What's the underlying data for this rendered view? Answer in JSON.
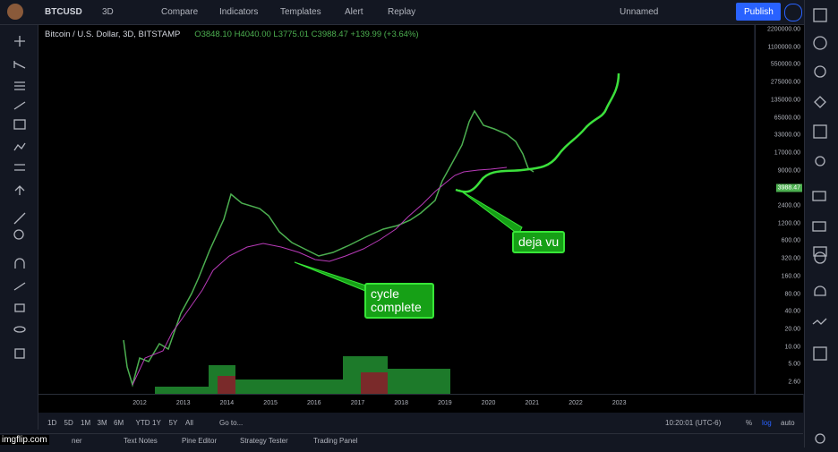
{
  "toolbar": {
    "symbol": "BTCUSD",
    "interval": "3D",
    "buttons": [
      "Compare",
      "Indicators",
      "Templates",
      "Alert",
      "Replay"
    ],
    "layout_name": "Unnamed",
    "publish": "Publish"
  },
  "legend": {
    "title": "Bitcoin / U.S. Dollar, 3D, BITSTAMP",
    "open": "O3848.10",
    "high": "H4040.00",
    "low": "L3775.01",
    "close": "C3988.47",
    "change": "+139.99 (+3.64%)"
  },
  "price_axis": {
    "labels": [
      "2200000.00",
      "1100000.00",
      "550000.00",
      "275000.00",
      "135000.00",
      "65000.00",
      "33000.00",
      "17000.00",
      "9000.00",
      "2400.00",
      "1200.00",
      "600.00",
      "320.00",
      "160.00",
      "80.00",
      "40.00",
      "20.00",
      "10.00",
      "5.00",
      "2.60"
    ],
    "last_price": "3988.47"
  },
  "time_axis": {
    "labels": [
      "2012",
      "2013",
      "2014",
      "2015",
      "2016",
      "2017",
      "2018",
      "2019",
      "2020",
      "2021",
      "2022",
      "2023"
    ]
  },
  "annotations": {
    "deja_vu": "deja vu",
    "cycle_complete": "cycle complete"
  },
  "bottom_bar": {
    "ranges": [
      "1D",
      "5D",
      "1M",
      "3M",
      "6M",
      "YTD",
      "1Y",
      "5Y",
      "All"
    ],
    "goto": "Go to...",
    "time": "10:20:01 (UTC-6)",
    "percent": "%",
    "log": "log",
    "auto": "auto"
  },
  "tabs": [
    "ner",
    "Text Notes",
    "Pine Editor",
    "Strategy Tester",
    "Trading Panel"
  ],
  "watermark": "imgflip.com"
}
